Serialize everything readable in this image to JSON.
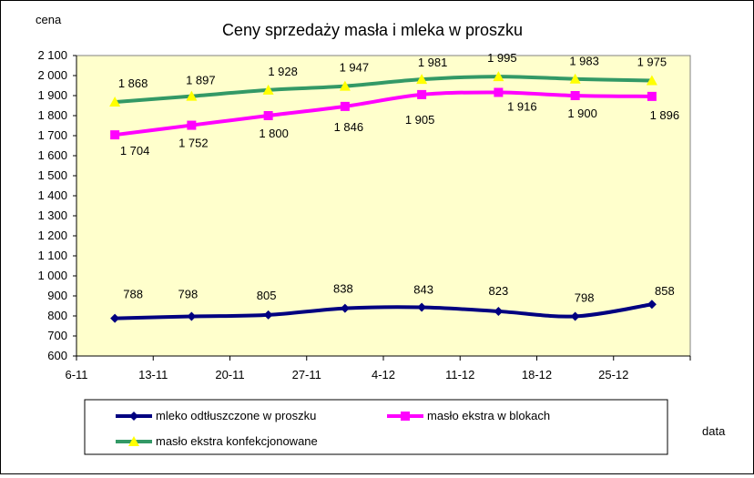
{
  "chart_data": {
    "type": "line",
    "title": "Ceny sprzedaży masła i mleka w proszku",
    "xlabel": "data",
    "ylabel": "cena",
    "categories": [
      "6-11",
      "13-11",
      "20-11",
      "27-11",
      "4-12",
      "11-12",
      "18-12",
      "25-12"
    ],
    "y_ticks": [
      "600",
      "700",
      "800",
      "900",
      "1 000",
      "1 100",
      "1 200",
      "1 300",
      "1 400",
      "1 500",
      "1 600",
      "1 700",
      "1 800",
      "1 900",
      "2 000",
      "2 100"
    ],
    "ylim": [
      600,
      2100
    ],
    "grid": false,
    "plot_background": "#ffffcc",
    "legend_position": "bottom",
    "series": [
      {
        "name": "mleko odtłuszczone w proszku",
        "color": "#000080",
        "marker": "diamond",
        "values": [
          788,
          798,
          805,
          838,
          843,
          823,
          798,
          858
        ],
        "labels": [
          "788",
          "798",
          "805",
          "838",
          "843",
          "823",
          "798",
          "858"
        ]
      },
      {
        "name": "masło ekstra w blokach",
        "color": "#ff00ff",
        "marker": "square",
        "values": [
          1704,
          1752,
          1800,
          1846,
          1905,
          1916,
          1900,
          1896
        ],
        "labels": [
          "1 704",
          "1 752",
          "1 800",
          "1 846",
          "1 905",
          "1 916",
          "1 900",
          "1 896"
        ]
      },
      {
        "name": "masło ekstra konfekcjonowane",
        "color": "#339966",
        "marker": "triangle",
        "marker_color": "#ffff00",
        "values": [
          1868,
          1897,
          1928,
          1947,
          1981,
          1995,
          1983,
          1975
        ],
        "labels": [
          "1 868",
          "1 897",
          "1 928",
          "1 947",
          "1 981",
          "1 995",
          "1 983",
          "1 975"
        ]
      }
    ]
  }
}
